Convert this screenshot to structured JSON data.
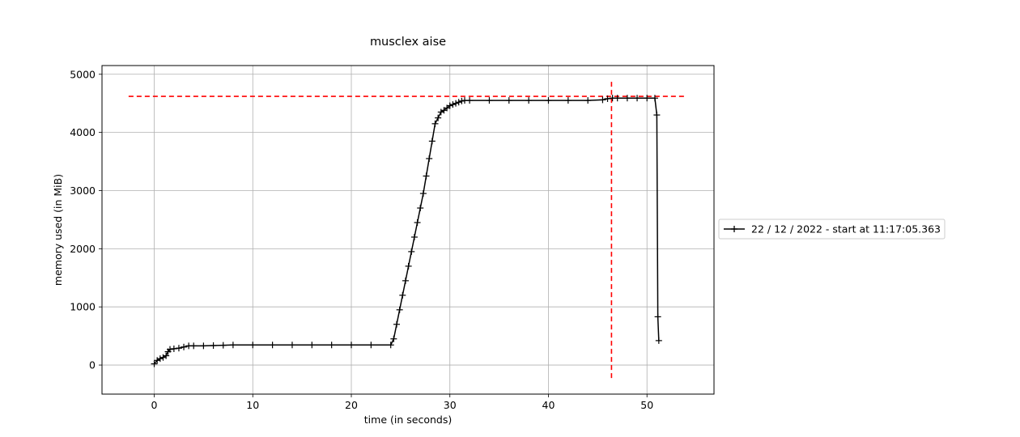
{
  "chart_data": {
    "type": "line",
    "title": "musclex aise",
    "xlabel": "time (in seconds)",
    "ylabel": "memory used (in MiB)",
    "xlim": [
      -5.3,
      56.8
    ],
    "ylim": [
      -500,
      5150
    ],
    "xticks": [
      0,
      10,
      20,
      30,
      40,
      50
    ],
    "yticks": [
      0,
      1000,
      2000,
      3000,
      4000,
      5000
    ],
    "grid": true,
    "legend_position": "right",
    "series": [
      {
        "name": "22 / 12 / 2022 - start at 11:17:05.363",
        "color": "#000000",
        "marker": "+",
        "x": [
          0,
          0.3,
          0.6,
          0.9,
          1.2,
          1.4,
          1.6,
          2.0,
          2.5,
          3.0,
          3.5,
          4.0,
          5.0,
          6.0,
          7.0,
          8.0,
          10.0,
          12.0,
          14.0,
          16.0,
          18.0,
          20.0,
          22.0,
          24.0,
          24.3,
          24.6,
          24.9,
          25.2,
          25.5,
          25.8,
          26.1,
          26.4,
          26.7,
          27.0,
          27.3,
          27.6,
          27.9,
          28.2,
          28.5,
          28.8,
          29.1,
          29.4,
          29.7,
          30.0,
          30.3,
          30.6,
          30.9,
          31.2,
          31.5,
          32.0,
          34.0,
          36.0,
          38.0,
          40.0,
          42.0,
          44.0,
          45.5,
          46.0,
          46.5,
          47.0,
          48.0,
          49.0,
          50.0,
          50.8,
          51.0,
          51.1,
          51.2
        ],
        "y": [
          20,
          80,
          110,
          130,
          160,
          230,
          270,
          280,
          290,
          310,
          330,
          330,
          330,
          335,
          340,
          345,
          345,
          345,
          345,
          345,
          345,
          345,
          345,
          345,
          450,
          700,
          950,
          1200,
          1450,
          1700,
          1950,
          2200,
          2450,
          2700,
          2950,
          3250,
          3550,
          3850,
          4150,
          4250,
          4350,
          4380,
          4420,
          4460,
          4480,
          4500,
          4520,
          4540,
          4550,
          4550,
          4550,
          4550,
          4550,
          4550,
          4550,
          4550,
          4560,
          4580,
          4590,
          4590,
          4590,
          4590,
          4590,
          4590,
          4300,
          830,
          420
        ]
      }
    ],
    "reference_lines": [
      {
        "orientation": "horizontal",
        "value": 4620,
        "color": "#ff0000",
        "style": "dashed"
      },
      {
        "orientation": "vertical",
        "value": 46.4,
        "color": "#ff0000",
        "style": "dashed"
      }
    ]
  }
}
